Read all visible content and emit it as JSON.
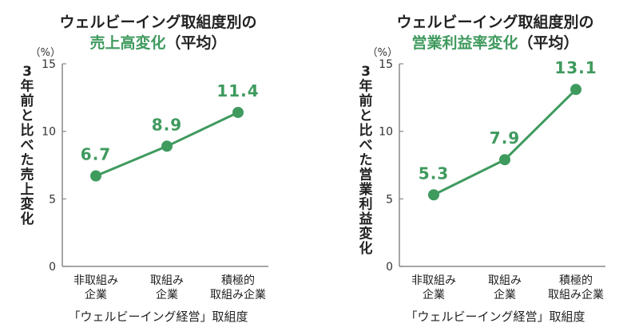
{
  "chart_data": [
    {
      "type": "line",
      "title": "ウェルビーイング取組度別の",
      "title_accent": "売上高変化",
      "title_suffix": "（平均）",
      "unit": "（%）",
      "ylabel": "3年前と比べた売上変化",
      "xlabel": "「ウェルビーイング経営」取組度",
      "ylim": [
        0,
        15
      ],
      "yticks": [
        0,
        5,
        10,
        15
      ],
      "categories": [
        [
          "非取組み",
          "企業"
        ],
        [
          "取組み",
          "企業"
        ],
        [
          "積極的",
          "取組み企業"
        ]
      ],
      "values": [
        6.7,
        8.9,
        11.4
      ],
      "value_labels": [
        "6.7",
        "8.9",
        "11.4"
      ]
    },
    {
      "type": "line",
      "title": "ウェルビーイング取組度別の",
      "title_accent": "営業利益率変化",
      "title_suffix": "（平均）",
      "unit": "（%）",
      "ylabel": "3年前と比べた営業利益変化",
      "xlabel": "「ウェルビーイング経営」取組度",
      "ylim": [
        0,
        15
      ],
      "yticks": [
        0,
        5,
        10,
        15
      ],
      "categories": [
        [
          "非取組み",
          "企業"
        ],
        [
          "取組み",
          "企業"
        ],
        [
          "積極的",
          "取組み企業"
        ]
      ],
      "values": [
        5.3,
        7.9,
        13.1
      ],
      "value_labels": [
        "5.3",
        "7.9",
        "13.1"
      ]
    }
  ],
  "colors": {
    "accent": "#3f9a5e",
    "axis": "#888888",
    "text": "#222222"
  }
}
